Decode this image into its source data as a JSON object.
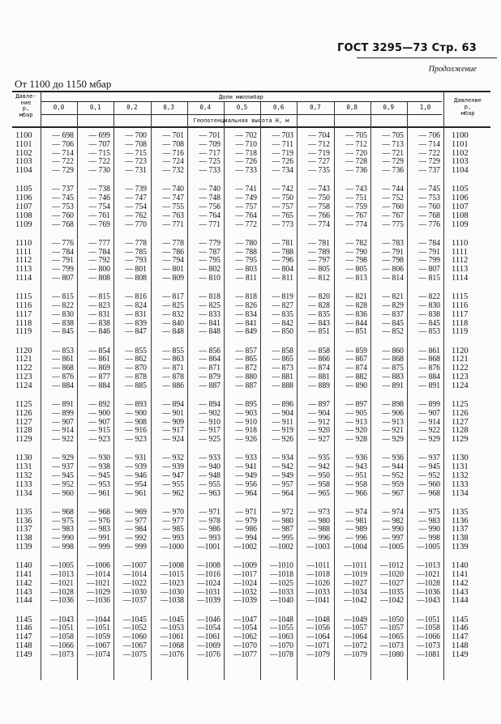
{
  "header": {
    "doc": "ГОСТ 3295—73 Стр. 63",
    "continued": "Продолжение",
    "range_title": "От 1100 до 1150 мбар"
  },
  "table": {
    "left_header": "Давле-\nние\np,\nмбар",
    "right_header": "Давление\np,\nмбар",
    "fractions_header": "Доли миллибар",
    "height_header": "Геопотенциальная высота H, м",
    "columns": [
      "0,0",
      "0,1",
      "0,2",
      "0,3",
      "0,4",
      "0,5",
      "0,6",
      "0,7",
      "0,8",
      "0,9",
      "1,0"
    ],
    "rows": [
      {
        "p": "1100",
        "v": [
          -698,
          -699,
          -700,
          -701,
          -701,
          -702,
          -703,
          -704,
          -705,
          -705,
          -706
        ]
      },
      {
        "p": "1101",
        "v": [
          -706,
          -707,
          -708,
          -708,
          -709,
          -710,
          -711,
          -712,
          -712,
          -713,
          -714
        ]
      },
      {
        "p": "1102",
        "v": [
          -714,
          -715,
          -715,
          -716,
          -717,
          -718,
          -719,
          -719,
          -720,
          -721,
          -722
        ]
      },
      {
        "p": "1103",
        "v": [
          -722,
          -722,
          -723,
          -724,
          -725,
          -726,
          -726,
          -727,
          -728,
          -729,
          -729
        ]
      },
      {
        "p": "1104",
        "v": [
          -729,
          -730,
          -731,
          -732,
          -733,
          -733,
          -734,
          -735,
          -736,
          -736,
          -737
        ]
      },
      {
        "p": "1105",
        "v": [
          -737,
          -738,
          -739,
          -740,
          -740,
          -741,
          -742,
          -743,
          -743,
          -744,
          -745
        ]
      },
      {
        "p": "1106",
        "v": [
          -745,
          -746,
          -747,
          -747,
          -748,
          -749,
          -750,
          -750,
          -751,
          -752,
          -753
        ]
      },
      {
        "p": "1107",
        "v": [
          -753,
          -754,
          -754,
          -755,
          -756,
          -757,
          -757,
          -758,
          -759,
          -760,
          -760
        ]
      },
      {
        "p": "1108",
        "v": [
          -760,
          -761,
          -762,
          -763,
          -764,
          -764,
          -765,
          -766,
          -767,
          -767,
          -768
        ]
      },
      {
        "p": "1109",
        "v": [
          -768,
          -769,
          -770,
          -771,
          -771,
          -772,
          -773,
          -774,
          -774,
          -775,
          -776
        ]
      },
      {
        "p": "1110",
        "v": [
          -776,
          -777,
          -778,
          -778,
          -779,
          -780,
          -781,
          -781,
          -782,
          -783,
          -784
        ]
      },
      {
        "p": "1111",
        "v": [
          -784,
          -784,
          -785,
          -786,
          -787,
          -788,
          -788,
          -789,
          -790,
          -791,
          -791
        ]
      },
      {
        "p": "1112",
        "v": [
          -791,
          -792,
          -793,
          -794,
          -795,
          -795,
          -796,
          -797,
          -798,
          -798,
          -799
        ]
      },
      {
        "p": "1113",
        "v": [
          -799,
          -800,
          -801,
          -801,
          -802,
          -803,
          -804,
          -805,
          -805,
          -806,
          -807
        ]
      },
      {
        "p": "1114",
        "v": [
          -807,
          -808,
          -808,
          -809,
          -810,
          -811,
          -811,
          -812,
          -813,
          -814,
          -815
        ]
      },
      {
        "p": "1115",
        "v": [
          -815,
          -815,
          -816,
          -817,
          -818,
          -818,
          -819,
          -820,
          -821,
          -821,
          -822
        ]
      },
      {
        "p": "1116",
        "v": [
          -822,
          -823,
          -824,
          -825,
          -825,
          -826,
          -827,
          -828,
          -828,
          -829,
          -830
        ]
      },
      {
        "p": "1117",
        "v": [
          -830,
          -831,
          -831,
          -832,
          -833,
          -834,
          -835,
          -835,
          -836,
          -837,
          -838
        ]
      },
      {
        "p": "1118",
        "v": [
          -838,
          -838,
          -839,
          -840,
          -841,
          -841,
          -842,
          -843,
          -844,
          -845,
          -845
        ]
      },
      {
        "p": "1119",
        "v": [
          -845,
          -846,
          -847,
          -848,
          -848,
          -849,
          -850,
          -851,
          -851,
          -852,
          -853
        ]
      },
      {
        "p": "1120",
        "v": [
          -853,
          -854,
          -855,
          -855,
          -856,
          -857,
          -858,
          -858,
          -859,
          -860,
          -861
        ]
      },
      {
        "p": "1121",
        "v": [
          -861,
          -861,
          -862,
          -863,
          -864,
          -865,
          -865,
          -866,
          -867,
          -868,
          -868
        ]
      },
      {
        "p": "1122",
        "v": [
          -868,
          -869,
          -870,
          -871,
          -871,
          -872,
          -873,
          -874,
          -874,
          -875,
          -876
        ]
      },
      {
        "p": "1123",
        "v": [
          -876,
          -877,
          -878,
          -878,
          -879,
          -880,
          -881,
          -881,
          -882,
          -883,
          -884
        ]
      },
      {
        "p": "1124",
        "v": [
          -884,
          -884,
          -885,
          -886,
          -887,
          -887,
          -888,
          -889,
          -890,
          -891,
          -891
        ]
      },
      {
        "p": "1125",
        "v": [
          -891,
          -892,
          -893,
          -894,
          -894,
          -895,
          -896,
          -897,
          -897,
          -898,
          -899
        ]
      },
      {
        "p": "1126",
        "v": [
          -899,
          -900,
          -900,
          -901,
          -902,
          -903,
          -904,
          -904,
          -905,
          -906,
          -907
        ]
      },
      {
        "p": "1127",
        "v": [
          -907,
          -907,
          -908,
          -909,
          -910,
          -910,
          -911,
          -912,
          -913,
          -913,
          -914
        ]
      },
      {
        "p": "1128",
        "v": [
          -914,
          -915,
          -916,
          -917,
          -917,
          -918,
          -919,
          -920,
          -920,
          -921,
          -922
        ]
      },
      {
        "p": "1129",
        "v": [
          -922,
          -923,
          -923,
          -924,
          -925,
          -926,
          -926,
          -927,
          -928,
          -929,
          -929
        ]
      },
      {
        "p": "1130",
        "v": [
          -929,
          -930,
          -931,
          -932,
          -933,
          -933,
          -934,
          -935,
          -936,
          -936,
          -937
        ]
      },
      {
        "p": "1131",
        "v": [
          -937,
          -938,
          -939,
          -939,
          -940,
          -941,
          -942,
          -942,
          -943,
          -944,
          -945
        ]
      },
      {
        "p": "1132",
        "v": [
          -945,
          -945,
          -946,
          -947,
          -948,
          -949,
          -949,
          -950,
          -951,
          -952,
          -952
        ]
      },
      {
        "p": "1133",
        "v": [
          -952,
          -953,
          -954,
          -955,
          -955,
          -956,
          -957,
          -958,
          -958,
          -959,
          -960
        ]
      },
      {
        "p": "1134",
        "v": [
          -960,
          -961,
          -961,
          -962,
          -963,
          -964,
          -964,
          -965,
          -966,
          -967,
          -968
        ]
      },
      {
        "p": "1135",
        "v": [
          -968,
          -968,
          -969,
          -970,
          -971,
          -971,
          -972,
          -973,
          -974,
          -974,
          -975
        ]
      },
      {
        "p": "1136",
        "v": [
          -975,
          -976,
          -977,
          -977,
          -978,
          -979,
          -980,
          -980,
          -981,
          -982,
          -983
        ]
      },
      {
        "p": "1137",
        "v": [
          -983,
          -983,
          -984,
          -985,
          -986,
          -986,
          -987,
          -988,
          -989,
          -990,
          -990
        ]
      },
      {
        "p": "1138",
        "v": [
          -990,
          -991,
          -992,
          -993,
          -993,
          -994,
          -995,
          -996,
          -996,
          -997,
          -998
        ]
      },
      {
        "p": "1139",
        "v": [
          -998,
          -999,
          -999,
          -1000,
          -1001,
          -1002,
          -1002,
          -1003,
          -1004,
          -1005,
          -1005
        ]
      },
      {
        "p": "1140",
        "v": [
          -1005,
          -1006,
          -1007,
          -1008,
          -1008,
          -1009,
          -1010,
          -1011,
          -1011,
          -1012,
          -1013
        ]
      },
      {
        "p": "1141",
        "v": [
          -1013,
          -1014,
          -1014,
          -1015,
          -1016,
          -1017,
          -1018,
          -1018,
          -1019,
          -1020,
          -1021
        ]
      },
      {
        "p": "1142",
        "v": [
          -1021,
          -1021,
          -1022,
          -1023,
          -1024,
          -1024,
          -1025,
          -1026,
          -1027,
          -1027,
          -1028
        ]
      },
      {
        "p": "1143",
        "v": [
          -1028,
          -1029,
          -1030,
          -1030,
          -1031,
          -1032,
          -1033,
          -1033,
          -1034,
          -1035,
          -1036
        ]
      },
      {
        "p": "1144",
        "v": [
          -1036,
          -1036,
          -1037,
          -1038,
          -1039,
          -1039,
          -1040,
          -1041,
          -1042,
          -1042,
          -1043
        ]
      },
      {
        "p": "1145",
        "v": [
          -1043,
          -1044,
          -1045,
          -1045,
          -1046,
          -1047,
          -1048,
          -1048,
          -1049,
          -1050,
          -1051
        ]
      },
      {
        "p": "1146",
        "v": [
          -1051,
          -1051,
          -1052,
          -1053,
          -1054,
          -1054,
          -1055,
          -1056,
          -1057,
          -1057,
          -1058
        ]
      },
      {
        "p": "1147",
        "v": [
          -1058,
          -1059,
          -1060,
          -1061,
          -1061,
          -1062,
          -1063,
          -1064,
          -1064,
          -1065,
          -1066
        ]
      },
      {
        "p": "1148",
        "v": [
          -1066,
          -1067,
          -1067,
          -1068,
          -1069,
          -1070,
          -1070,
          -1071,
          -1072,
          -1073,
          -1073
        ]
      },
      {
        "p": "1149",
        "v": [
          -1073,
          -1074,
          -1075,
          -1076,
          -1076,
          -1077,
          -1078,
          -1079,
          -1079,
          -1080,
          -1081
        ]
      }
    ]
  }
}
